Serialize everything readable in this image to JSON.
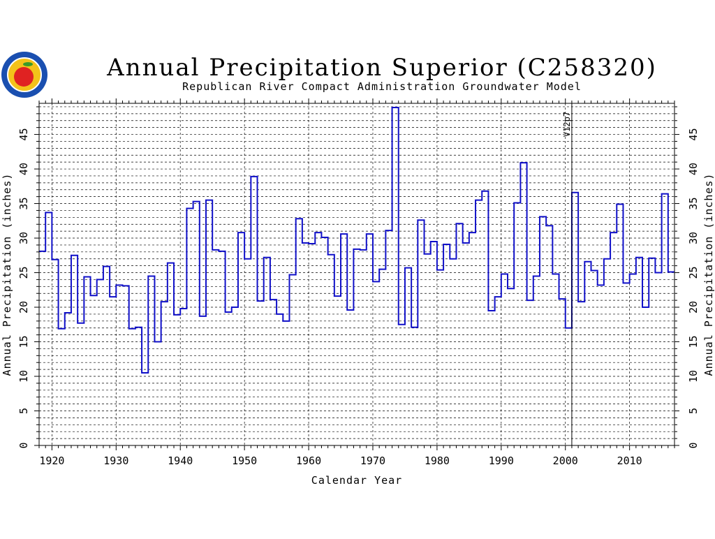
{
  "logo": {
    "alt_icon": "apple-seal-icon",
    "colors": {
      "ring": "#1a4fb0",
      "inner": "#f3c21a",
      "apple": "#e02222",
      "leaf": "#3a9a2a"
    }
  },
  "chart_data": {
    "type": "line",
    "style": "step",
    "title": "Annual Precipitation Superior (C258320)",
    "subtitle": "Republican River Compact Administration Groundwater Model",
    "xlabel": "Calendar Year",
    "ylabel_left": "Annual Precipitation (inches)",
    "ylabel_right": "Annual Precipitation (inches)",
    "xlim": [
      1918,
      2017
    ],
    "ylim": [
      0,
      49.5
    ],
    "x_ticks": [
      1920,
      1930,
      1940,
      1950,
      1960,
      1970,
      1980,
      1990,
      2000,
      2010
    ],
    "y_ticks": [
      0,
      5,
      10,
      15,
      20,
      25,
      30,
      35,
      40,
      45
    ],
    "grid": true,
    "line_color": "#1010c8",
    "marker_line": {
      "x": 2001,
      "label": "V12p7"
    },
    "series": [
      {
        "x": [
          1918,
          1919,
          1920,
          1921,
          1922,
          1923,
          1924,
          1925,
          1926,
          1927,
          1928,
          1929,
          1930,
          1931,
          1932,
          1933,
          1934,
          1935,
          1936,
          1937,
          1938,
          1939,
          1940,
          1941,
          1942,
          1943,
          1944,
          1945,
          1946,
          1947,
          1948,
          1949,
          1950,
          1951,
          1952,
          1953,
          1954,
          1955,
          1956,
          1957,
          1958,
          1959,
          1960,
          1961,
          1962,
          1963,
          1964,
          1965,
          1966,
          1967,
          1968,
          1969,
          1970,
          1971,
          1972,
          1973,
          1974,
          1975,
          1976,
          1977,
          1978,
          1979,
          1980,
          1981,
          1982,
          1983,
          1984,
          1985,
          1986,
          1987,
          1988,
          1989,
          1990,
          1991,
          1992,
          1993,
          1994,
          1995,
          1996,
          1997,
          1998,
          1999,
          2000,
          2001,
          2002,
          2003,
          2004,
          2005,
          2006,
          2007,
          2008,
          2009,
          2010,
          2011,
          2012,
          2013,
          2014,
          2015,
          2016
        ],
        "values": [
          28.1,
          33.7,
          26.9,
          16.9,
          19.2,
          27.5,
          17.7,
          24.4,
          21.7,
          24.0,
          25.9,
          21.5,
          23.2,
          23.1,
          16.9,
          17.1,
          10.5,
          24.5,
          15.0,
          20.8,
          26.4,
          18.9,
          19.8,
          34.3,
          35.3,
          18.7,
          35.5,
          28.3,
          28.1,
          19.3,
          20.0,
          30.8,
          27.0,
          38.9,
          20.9,
          27.2,
          21.1,
          19.0,
          18.0,
          24.7,
          32.8,
          29.3,
          29.2,
          30.8,
          30.1,
          27.6,
          21.6,
          30.6,
          19.6,
          28.4,
          28.3,
          30.6,
          23.7,
          25.5,
          31.1,
          48.9,
          17.5,
          25.7,
          17.1,
          32.6,
          27.7,
          29.5,
          25.4,
          29.1,
          27.0,
          32.1,
          29.3,
          30.8,
          35.5,
          36.8,
          19.5,
          21.5,
          24.8,
          22.7,
          35.1,
          40.9,
          21.0,
          24.5,
          33.1,
          31.8,
          24.8,
          21.2,
          17.0,
          36.6,
          20.8,
          26.6,
          25.3,
          23.2,
          27.0,
          30.8,
          34.9,
          23.5,
          24.8,
          27.2,
          20.0,
          27.1,
          25.0,
          36.4,
          25.1
        ]
      }
    ]
  }
}
